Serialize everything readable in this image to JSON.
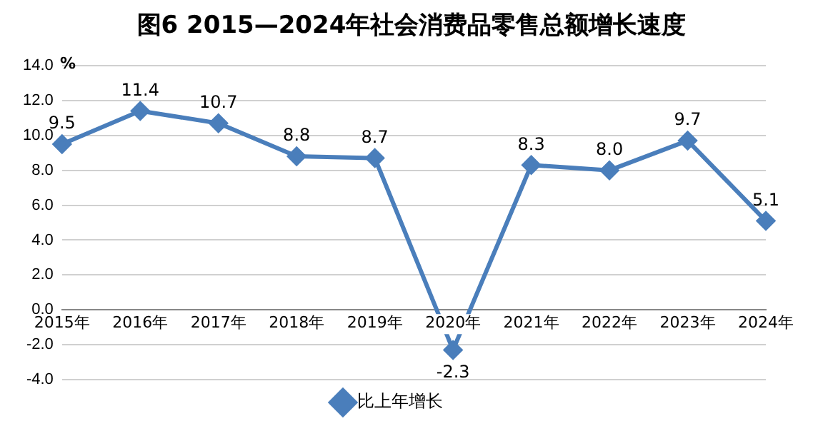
{
  "chart_data": {
    "type": "line",
    "title": "图6  2015—2024年社会消费品零售总额增长速度",
    "ylabel": "%",
    "categories": [
      "2015年",
      "2016年",
      "2017年",
      "2018年",
      "2019年",
      "2020年",
      "2021年",
      "2022年",
      "2023年",
      "2024年"
    ],
    "series": [
      {
        "name": "比上年增长",
        "color": "#4a7ebb",
        "values": [
          9.5,
          11.4,
          10.7,
          8.8,
          8.7,
          -2.3,
          8.3,
          8.0,
          9.7,
          5.1
        ],
        "value_labels": [
          "9.5",
          "11.4",
          "10.7",
          "8.8",
          "8.7",
          "-2.3",
          "8.3",
          "8.0",
          "9.7",
          "5.1"
        ]
      }
    ],
    "ylim": [
      -4,
      14
    ],
    "yticks": [
      {
        "value": -4,
        "label": "-4.0"
      },
      {
        "value": -2,
        "label": "-2.0"
      },
      {
        "value": 0,
        "label": "0.0"
      },
      {
        "value": 2,
        "label": "2.0"
      },
      {
        "value": 4,
        "label": "4.0"
      },
      {
        "value": 6,
        "label": "6.0"
      },
      {
        "value": 8,
        "label": "8.0"
      },
      {
        "value": 10,
        "label": "10.0"
      },
      {
        "value": 12,
        "label": "12.0"
      },
      {
        "value": 14,
        "label": "14.0"
      }
    ],
    "grid": "y",
    "legend": "bottom",
    "marker": "diamond",
    "line_style": "solid"
  }
}
